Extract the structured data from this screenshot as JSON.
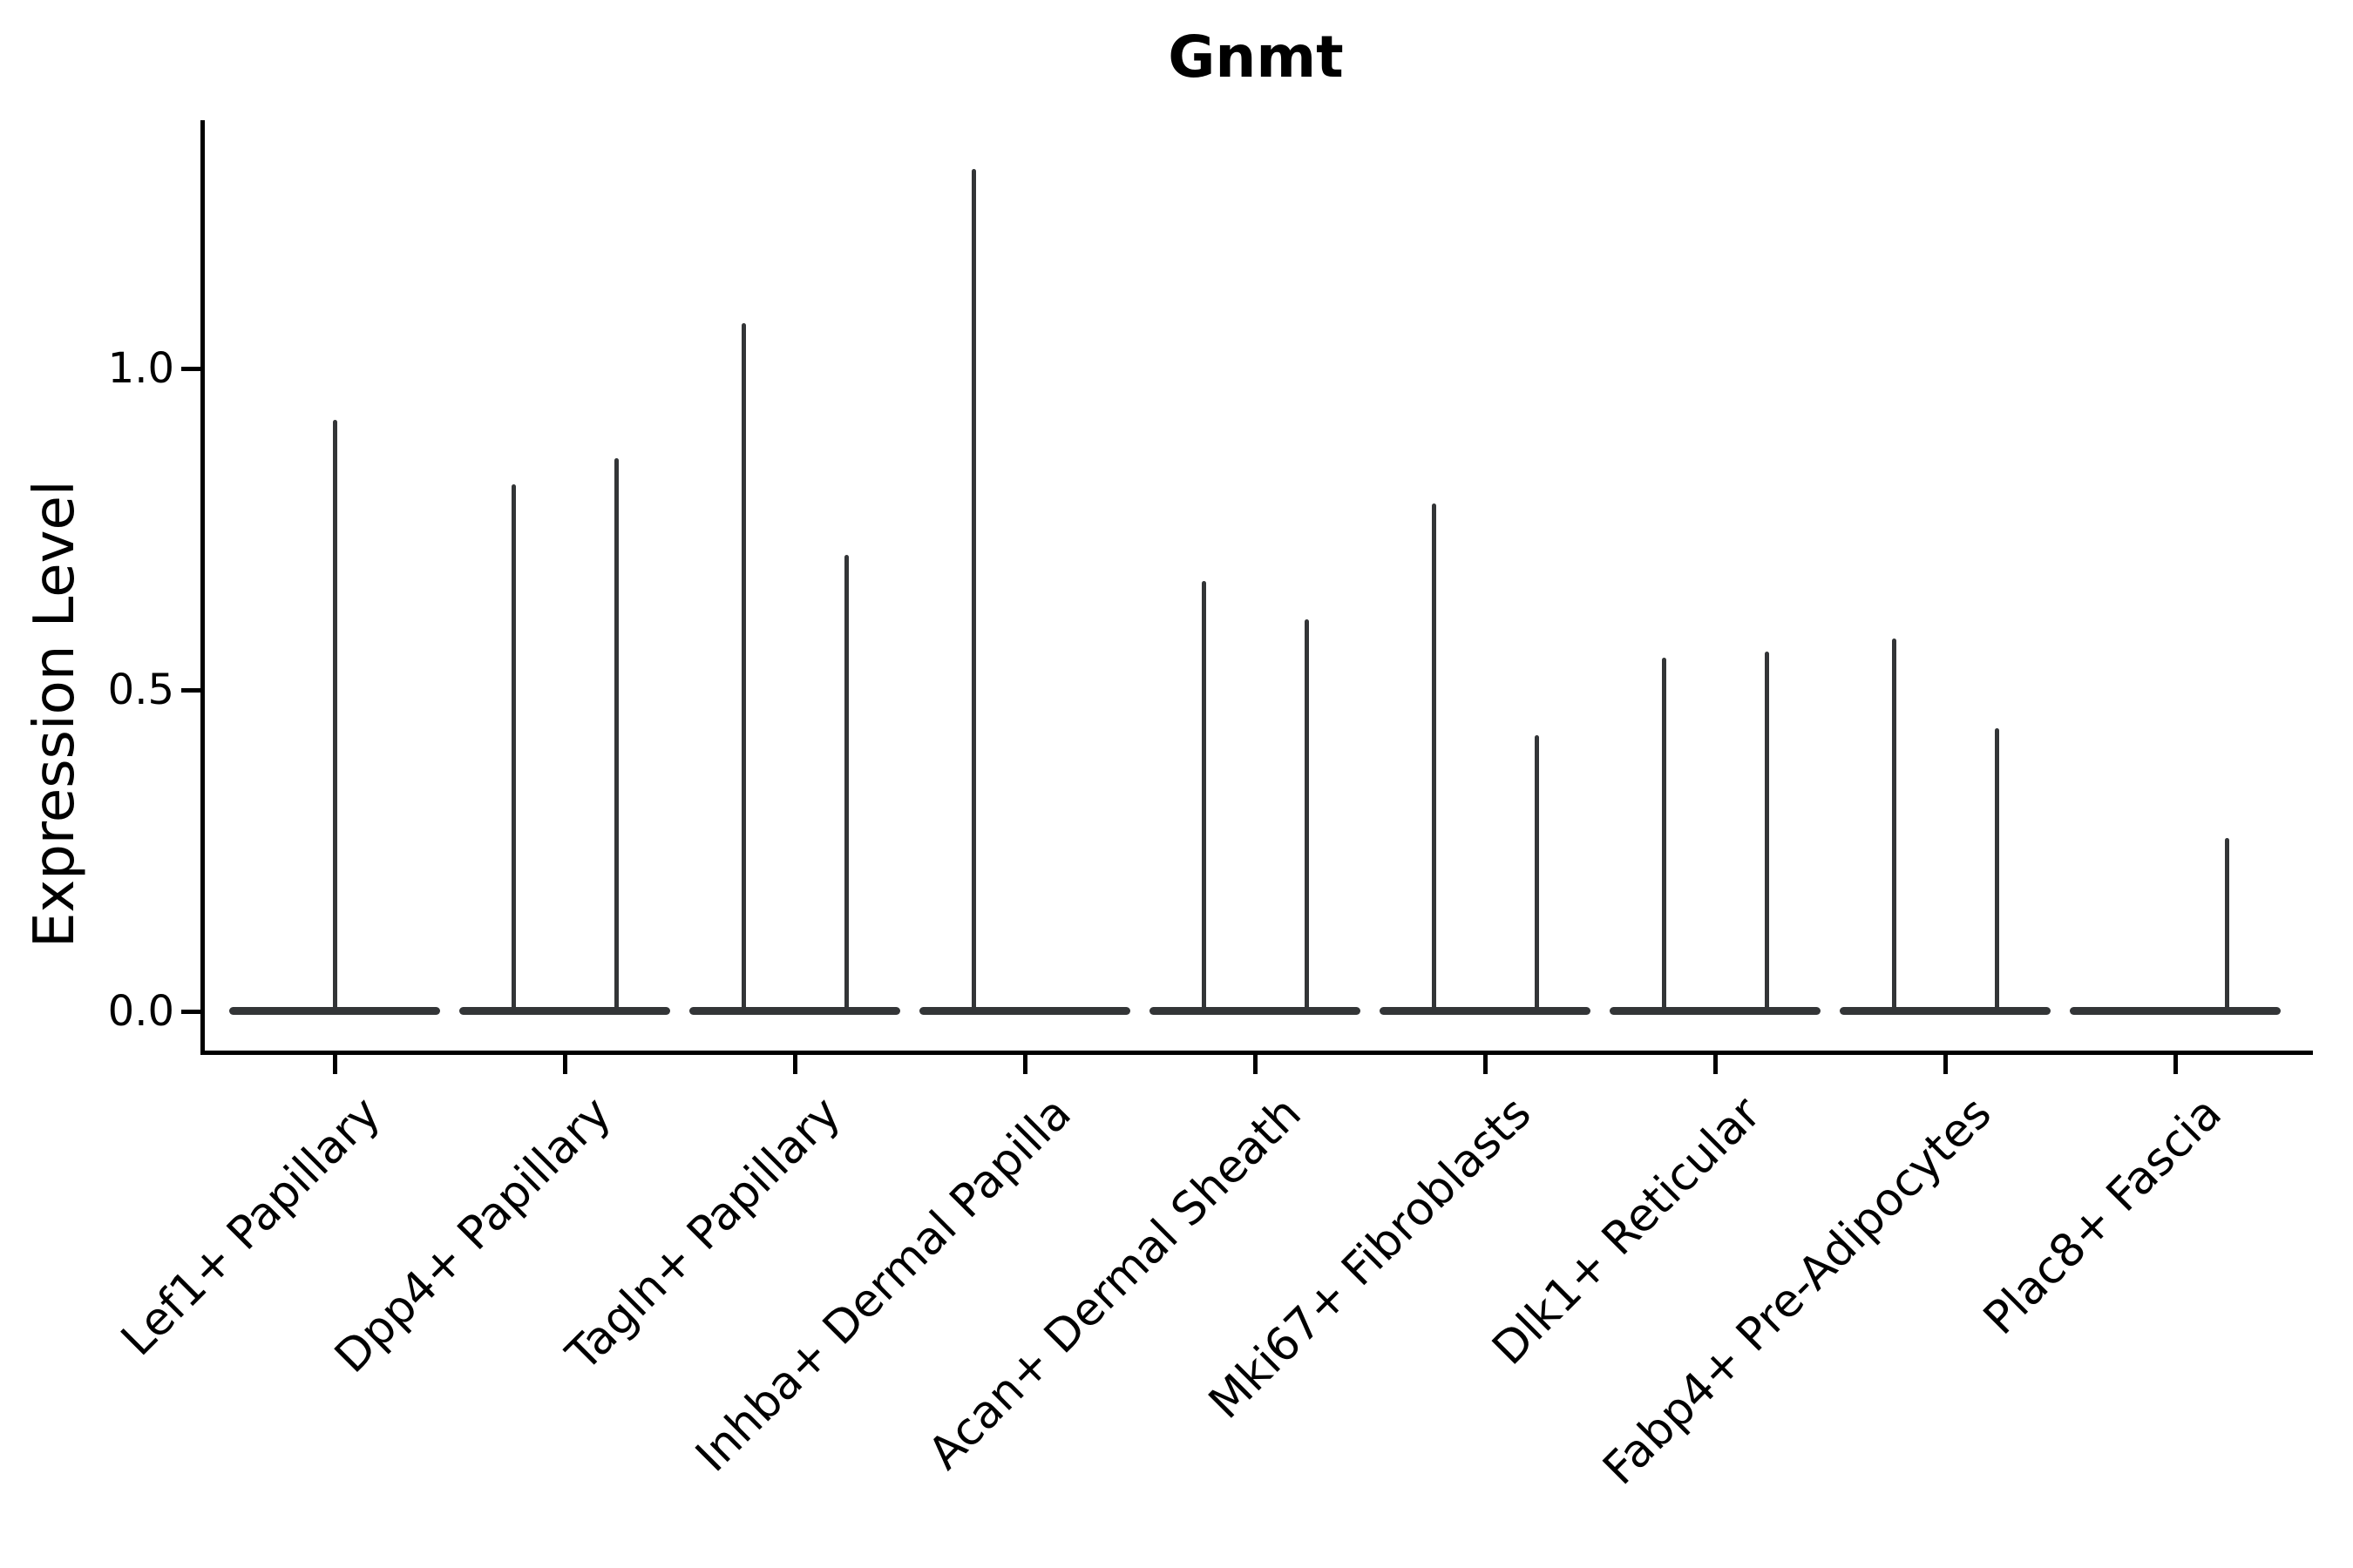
{
  "chart_data": {
    "type": "violin",
    "title": "Gnmt",
    "ylabel": "Expression Level",
    "xlabel": "",
    "yticks": [
      0.0,
      0.5,
      1.0
    ],
    "ylim": [
      -0.06,
      1.38
    ],
    "grid": false,
    "legend": false,
    "style_note": "needle-thin violins: flat baseline at 0 with a narrow density spike per violin",
    "colors": {
      "violin_line": "#333537",
      "spine": "#000000",
      "text": "#000000",
      "background": "#ffffff"
    },
    "groups": [
      {
        "label": "Lef1+ Papillary",
        "violins": [
          {
            "position": "center",
            "max": 0.92
          }
        ]
      },
      {
        "label": "Dpp4+ Papillary",
        "violins": [
          {
            "position": "left",
            "max": 0.82
          },
          {
            "position": "right",
            "max": 0.86
          }
        ]
      },
      {
        "label": "Tagln+ Papillary",
        "violins": [
          {
            "position": "left",
            "max": 1.07
          },
          {
            "position": "right",
            "max": 0.71
          }
        ]
      },
      {
        "label": "Inhba+ Dermal Papilla",
        "violins": [
          {
            "position": "left",
            "max": 1.31
          },
          {
            "position": "right",
            "max": 0.0
          }
        ]
      },
      {
        "label": "Acan+ Dermal Sheath",
        "violins": [
          {
            "position": "left",
            "max": 0.67
          },
          {
            "position": "right",
            "max": 0.61
          }
        ]
      },
      {
        "label": "Mki67+ Fibroblasts",
        "violins": [
          {
            "position": "left",
            "max": 0.79
          },
          {
            "position": "right",
            "max": 0.43
          }
        ]
      },
      {
        "label": "Dlk1+ Reticular",
        "violins": [
          {
            "position": "left",
            "max": 0.55
          },
          {
            "position": "right",
            "max": 0.56
          }
        ]
      },
      {
        "label": "Fabp4+ Pre-Adipocytes",
        "violins": [
          {
            "position": "left",
            "max": 0.58
          },
          {
            "position": "right",
            "max": 0.44
          }
        ]
      },
      {
        "label": "Plac8+ Fascia",
        "violins": [
          {
            "position": "left",
            "max": 0.0
          },
          {
            "position": "right",
            "max": 0.27
          }
        ]
      }
    ]
  }
}
